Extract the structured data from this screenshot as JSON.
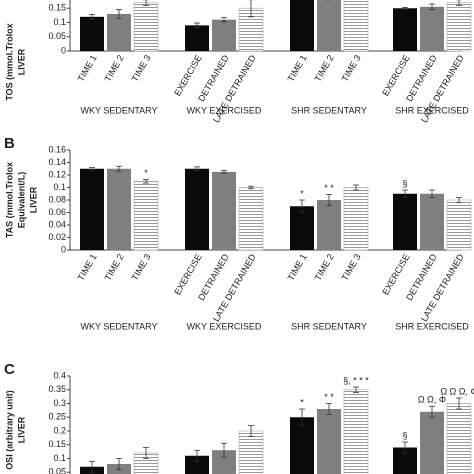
{
  "chart_data": [
    {
      "type": "bar",
      "ylabel": [
        "TOS (mmol.Trolox",
        "LIVER"
      ],
      "categories": [
        "TIME 1",
        "TIME 2",
        "TIME 3",
        "EXERCISE",
        "DETRAINED",
        "LATE DETRAINED",
        "TIME 1",
        "TIME 2",
        "TIME 3",
        "EXERCISE",
        "DETRAINED",
        "LATE DETRAINED"
      ],
      "groups": [
        "WKY SEDENTARY",
        "WKY EXERCISED",
        "SHR SEDENTARY",
        "SHR EXERCISED"
      ],
      "values": [
        0.12,
        0.13,
        0.17,
        0.09,
        0.11,
        0.15,
        0.19,
        0.19,
        0.2,
        0.15,
        0.155,
        0.17
      ],
      "errors": [
        0.008,
        0.015,
        0.01,
        0.008,
        0.008,
        0.03,
        0.01,
        0.01,
        0.01,
        0.003,
        0.01,
        0.01
      ],
      "fill_cycle": [
        "#0a0a0a",
        "#7f7f7f",
        "hatch"
      ],
      "ylim": [
        0,
        0.2
      ],
      "yticks": [
        0,
        0.05,
        0.1,
        0.15
      ]
    },
    {
      "type": "bar",
      "panel": "B",
      "ylabel": [
        "TAS (mmol.Trolox",
        "Equivalent/L)",
        "LIVER"
      ],
      "categories": [
        "TIME 1",
        "TIME 2",
        "TIME 3",
        "EXERCISE",
        "DETRAINED",
        "LATE DETRAINED",
        "TIME 1",
        "TIME 2",
        "TIME 3",
        "EXERCISE",
        "DETRAINED",
        "LATE DETRAINED"
      ],
      "groups": [
        "WKY SEDENTARY",
        "WKY EXERCISED",
        "SHR SEDENTARY",
        "SHR EXERCISED"
      ],
      "values": [
        0.13,
        0.13,
        0.11,
        0.13,
        0.125,
        0.1,
        0.07,
        0.08,
        0.1,
        0.09,
        0.09,
        0.08
      ],
      "errors": [
        0.002,
        0.004,
        0.003,
        0.003,
        0.002,
        0.002,
        0.01,
        0.009,
        0.004,
        0.006,
        0.006,
        0.004
      ],
      "annotations": [
        null,
        null,
        "*",
        null,
        null,
        null,
        "*",
        "* *",
        null,
        "§",
        null,
        null
      ],
      "fill_cycle": [
        "#0a0a0a",
        "#7f7f7f",
        "hatch"
      ],
      "ylim": [
        0,
        0.16
      ],
      "yticks": [
        0,
        0.02,
        0.04,
        0.06,
        0.08,
        0.1,
        0.12,
        0.14,
        0.16
      ]
    },
    {
      "type": "bar",
      "panel": "C",
      "ylabel": [
        "OSI (arbitrary unit)",
        "LIVER"
      ],
      "values": [
        0.07,
        0.08,
        0.12,
        0.11,
        0.13,
        0.2,
        0.25,
        0.28,
        0.35,
        0.14,
        0.27,
        0.3
      ],
      "errors": [
        0.02,
        0.02,
        0.02,
        0.02,
        0.025,
        0.02,
        0.03,
        0.02,
        0.01,
        0.02,
        0.02,
        0.02
      ],
      "annotations": [
        null,
        null,
        null,
        null,
        null,
        null,
        "*",
        "* *",
        "§, * * *",
        "§",
        "Ω Ω, Φ",
        "Ω Ω Ω, Φ"
      ],
      "fill_cycle": [
        "#0a0a0a",
        "#7f7f7f",
        "hatch"
      ],
      "ylim": [
        0,
        0.4
      ],
      "yticks": [
        0.05,
        0.1,
        0.15,
        0.2,
        0.25,
        0.3,
        0.35,
        0.4
      ]
    }
  ]
}
